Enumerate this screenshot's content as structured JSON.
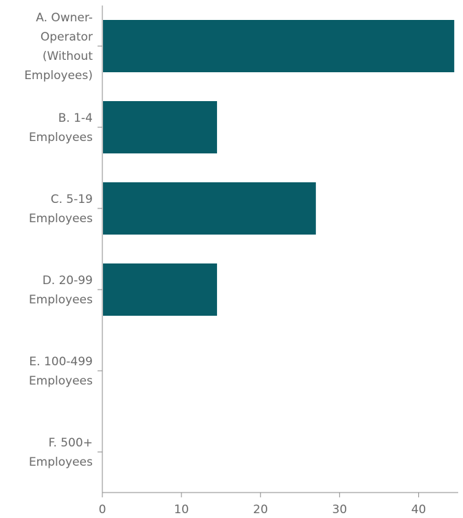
{
  "chart_data": {
    "type": "bar",
    "orientation": "horizontal",
    "categories": [
      [
        "A. Owner-",
        "Operator",
        "(Without",
        "Employees)"
      ],
      [
        "B. 1-4",
        "Employees"
      ],
      [
        "C. 5-19",
        "Employees"
      ],
      [
        "D. 20-99",
        "Employees"
      ],
      [
        "E. 100-499",
        "Employees"
      ],
      [
        "F. 500+",
        "Employees"
      ]
    ],
    "values": [
      44.5,
      14.5,
      27,
      14.5,
      0,
      0
    ],
    "x_ticks": [
      "0",
      "10",
      "20",
      "30",
      "40"
    ],
    "x_tick_values": [
      0,
      10,
      20,
      30,
      40
    ],
    "xlim": [
      0,
      45
    ],
    "title": "",
    "xlabel": "",
    "ylabel": "",
    "grid": false,
    "legend": "none",
    "bar_color": "#085c67",
    "axis_color": "#8a8a8a",
    "label_color": "#6b6b6b"
  }
}
